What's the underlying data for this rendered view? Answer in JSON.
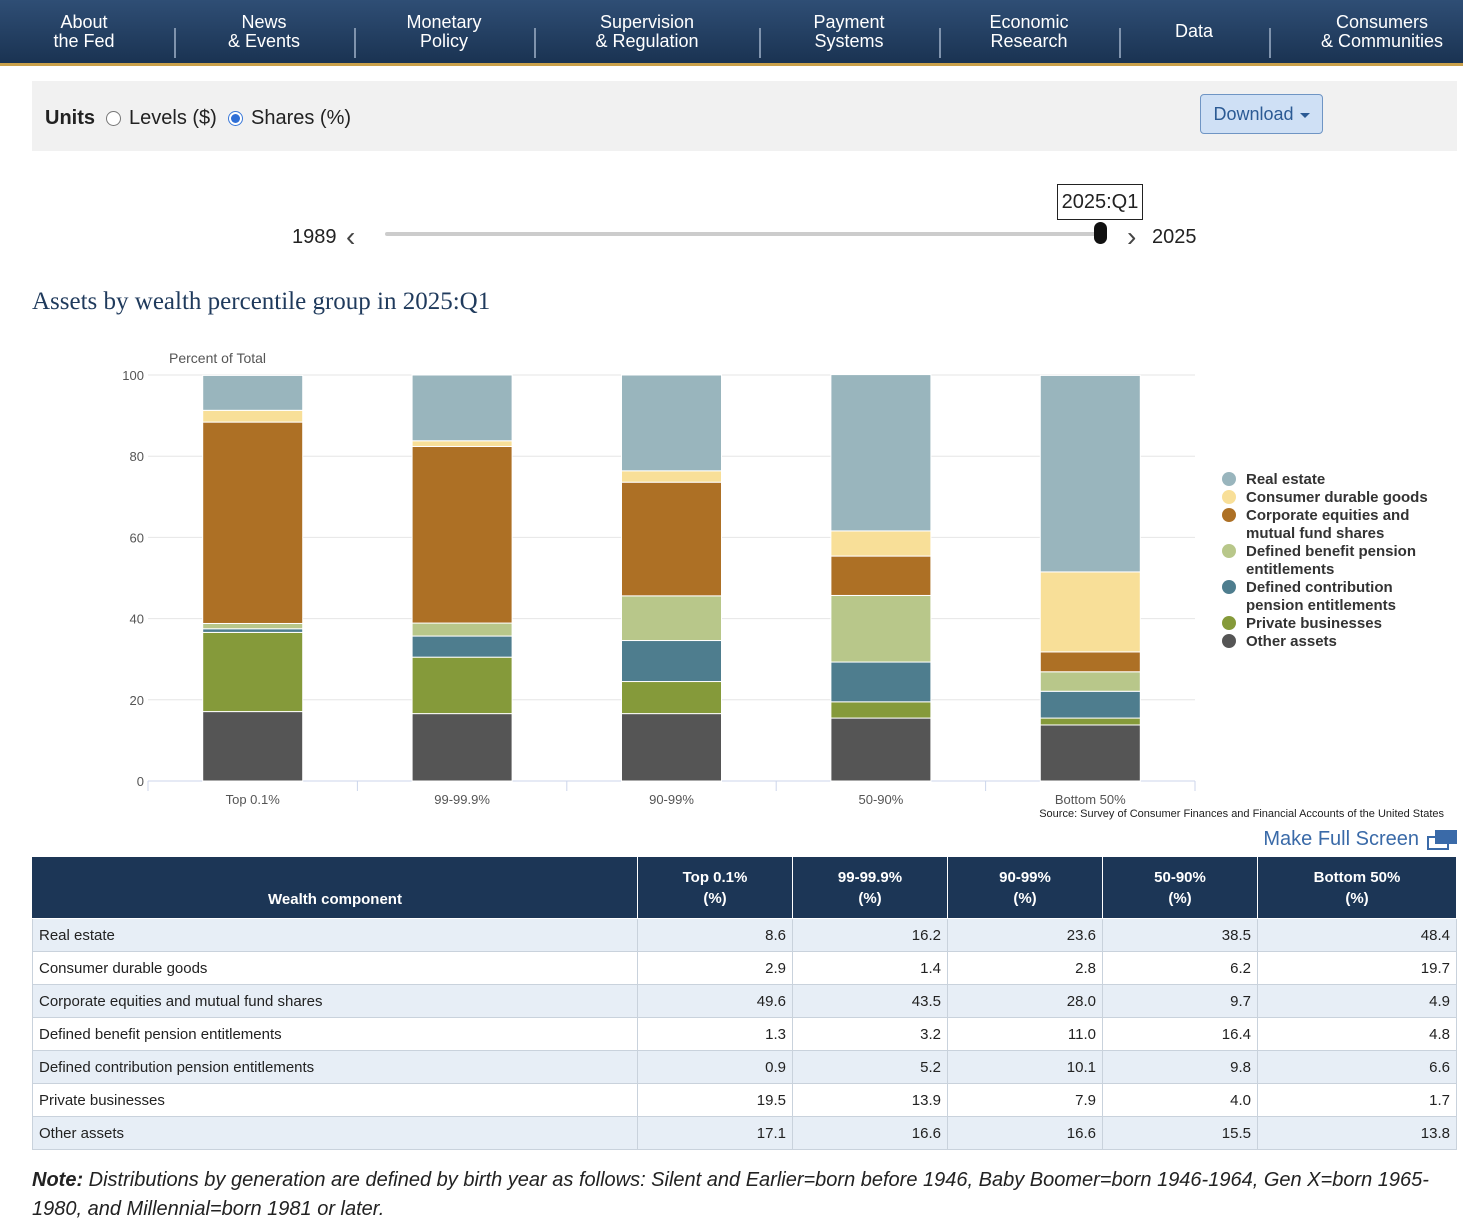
{
  "nav": [
    {
      "label": "About\nthe Fed"
    },
    {
      "label": "News\n& Events"
    },
    {
      "label": "Monetary\nPolicy"
    },
    {
      "label": "Supervision\n& Regulation"
    },
    {
      "label": "Payment\nSystems"
    },
    {
      "label": "Economic\nResearch"
    },
    {
      "label": "Data"
    },
    {
      "label": "Consumers\n& Communities"
    }
  ],
  "units": {
    "label": "Units",
    "options": [
      "Levels ($)",
      "Shares (%)"
    ],
    "selected": "Shares (%)",
    "download_label": "Download"
  },
  "slider": {
    "start_year": "1989",
    "end_year": "2025",
    "current": "2025:Q1",
    "position_fraction": 0.99
  },
  "title": "Assets by wealth percentile group in 2025:Q1",
  "chart_data": {
    "type": "bar",
    "stacked": true,
    "ylabel": "Percent of Total",
    "ylim": [
      0,
      100
    ],
    "yticks": [
      0,
      20,
      40,
      60,
      80,
      100
    ],
    "grid": true,
    "legend_position": "right",
    "categories": [
      "Top 0.1%",
      "99-99.9%",
      "90-99%",
      "50-90%",
      "Bottom 50%"
    ],
    "series": [
      {
        "name": "Real estate",
        "color": "#99b5bd",
        "values": [
          8.6,
          16.2,
          23.6,
          38.5,
          48.4
        ]
      },
      {
        "name": "Consumer durable goods",
        "color": "#f8df98",
        "values": [
          2.9,
          1.4,
          2.8,
          6.2,
          19.7
        ]
      },
      {
        "name": "Corporate equities and mutual fund shares",
        "color": "#ad7025",
        "values": [
          49.6,
          43.5,
          28.0,
          9.7,
          4.9
        ]
      },
      {
        "name": "Defined benefit pension entitlements",
        "color": "#b8c78a",
        "values": [
          1.3,
          3.2,
          11.0,
          16.4,
          4.8
        ]
      },
      {
        "name": "Defined contribution pension entitlements",
        "color": "#4e7d8e",
        "values": [
          0.9,
          5.2,
          10.1,
          9.8,
          6.6
        ]
      },
      {
        "name": "Private businesses",
        "color": "#859a3a",
        "values": [
          19.5,
          13.9,
          7.9,
          4.0,
          1.7
        ]
      },
      {
        "name": "Other assets",
        "color": "#555555",
        "values": [
          17.1,
          16.6,
          16.6,
          15.5,
          13.8
        ]
      }
    ]
  },
  "legend": [
    {
      "label": "Real estate",
      "color": "#99b5bd"
    },
    {
      "label": "Consumer durable goods",
      "color": "#f8df98"
    },
    {
      "label": "Corporate equities and mutual fund shares",
      "color": "#ad7025"
    },
    {
      "label": "Defined benefit pension entitlements",
      "color": "#b8c78a"
    },
    {
      "label": "Defined contribution pension entitlements",
      "color": "#4e7d8e"
    },
    {
      "label": "Private businesses",
      "color": "#859a3a"
    },
    {
      "label": "Other assets",
      "color": "#555555"
    }
  ],
  "source": "Source: Survey of Consumer Finances and Financial Accounts of the United States",
  "fullscreen_label": "Make Full Screen",
  "table": {
    "headers": [
      "Wealth component",
      "Top 0.1%\n(%)",
      "99-99.9%\n(%)",
      "90-99%\n(%)",
      "50-90%\n(%)",
      "Bottom 50%\n(%)"
    ],
    "rows": [
      [
        "Real estate",
        "8.6",
        "16.2",
        "23.6",
        "38.5",
        "48.4"
      ],
      [
        "Consumer durable goods",
        "2.9",
        "1.4",
        "2.8",
        "6.2",
        "19.7"
      ],
      [
        "Corporate equities and mutual fund shares",
        "49.6",
        "43.5",
        "28.0",
        "9.7",
        "4.9"
      ],
      [
        "Defined benefit pension entitlements",
        "1.3",
        "3.2",
        "11.0",
        "16.4",
        "4.8"
      ],
      [
        "Defined contribution pension entitlements",
        "0.9",
        "5.2",
        "10.1",
        "9.8",
        "6.6"
      ],
      [
        "Private businesses",
        "19.5",
        "13.9",
        "7.9",
        "4.0",
        "1.7"
      ],
      [
        "Other assets",
        "17.1",
        "16.6",
        "16.6",
        "15.5",
        "13.8"
      ]
    ]
  },
  "note": {
    "label": "Note:",
    "text": " Distributions by generation are defined by birth year as follows: Silent and Earlier=born before 1946, Baby Boomer=born 1946-1964, Gen X=born 1965-1980, and Millennial=born 1981 or later."
  }
}
